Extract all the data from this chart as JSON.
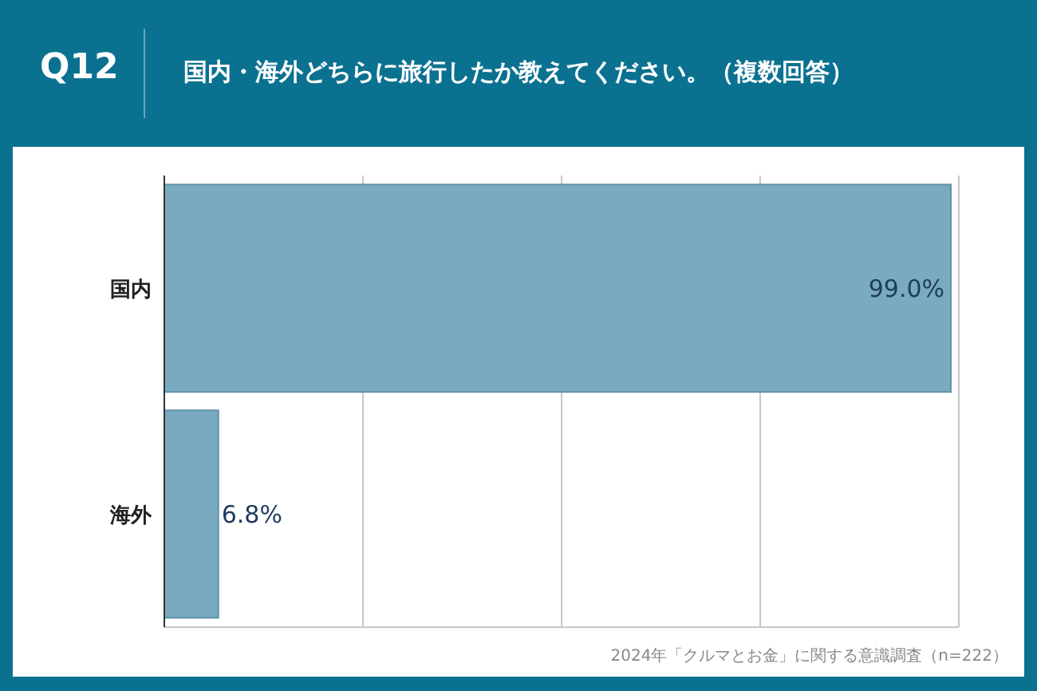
{
  "chart_data": {
    "type": "bar",
    "orientation": "horizontal",
    "subtitle": "Q12",
    "title": "国内・海外どちらに旅行したか教えてください。（複数回答）",
    "categories": [
      "国内",
      "海外"
    ],
    "values": [
      99.0,
      6.8
    ],
    "value_labels": [
      "99.0%",
      "6.8%"
    ],
    "color": "#7aaabf",
    "xlim": [
      0,
      100
    ],
    "xticks": [
      {
        "value": 0,
        "label": null
      },
      {
        "value": 25,
        "label": null
      },
      {
        "value": 50,
        "label": null
      },
      {
        "value": 75,
        "label": null
      },
      {
        "value": 100,
        "label": null
      }
    ],
    "tick_labels": "y",
    "grid": "x",
    "legend": false,
    "annotations": [
      "2024年「クルマとお金」に関する意識調査（n=222）"
    ]
  }
}
